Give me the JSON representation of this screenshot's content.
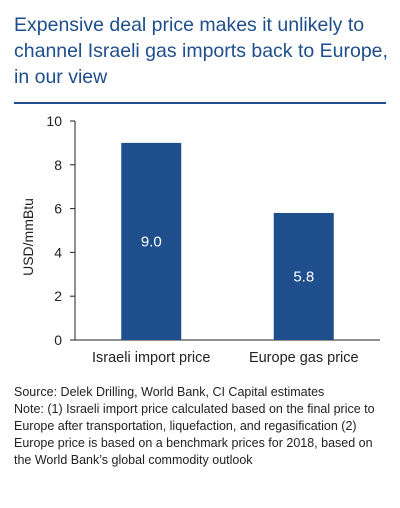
{
  "title": "Expensive deal price makes it unlikely to channel Israeli gas imports back to Europe, in our view",
  "colors": {
    "title": "#1f4e8c",
    "bar": "#1f4e8c",
    "bar_label": "#ffffff",
    "axis": "#222222"
  },
  "chart_data": {
    "type": "bar",
    "categories": [
      "Israeli import price",
      "Europe gas price"
    ],
    "values": [
      9.0,
      5.8
    ],
    "data_labels": [
      "9.0",
      "5.8"
    ],
    "title": "",
    "xlabel": "",
    "ylabel": "USD/mmBtu",
    "ylim": [
      0,
      10
    ],
    "yticks": [
      0,
      2,
      4,
      6,
      8,
      10
    ],
    "grid": false,
    "legend": "none"
  },
  "notes": {
    "source": "Source: Delek Drilling, World Bank, CI Capital estimates",
    "note": "Note: (1) Israeli import price calculated based on the final price to Europe after transportation, liquefaction, and regasification (2) Europe price is based on a benchmark prices for 2018, based on the World Bank’s global commodity outlook"
  }
}
